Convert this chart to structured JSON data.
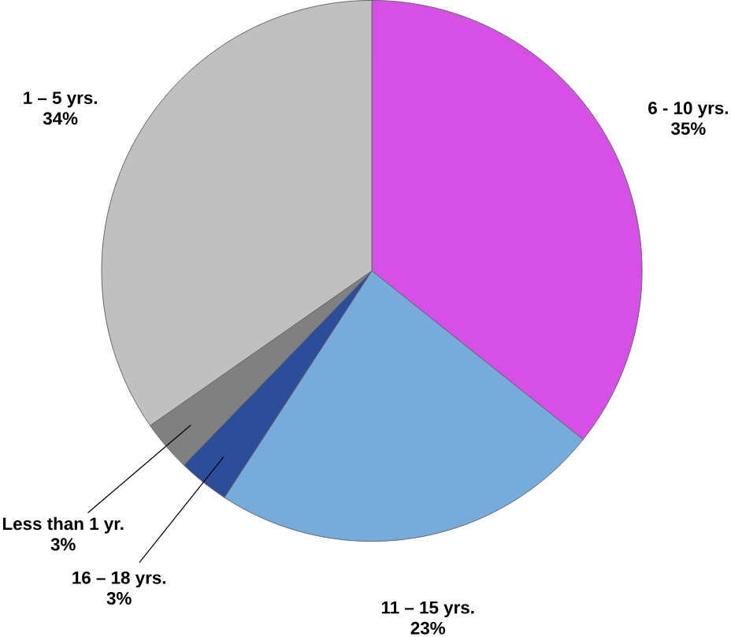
{
  "chart_data": {
    "type": "pie",
    "categories": [
      "6 - 10 yrs.",
      "11 – 15 yrs.",
      "16 – 18 yrs.",
      "Less than 1 yr.",
      "1 – 5 yrs."
    ],
    "values": [
      35,
      23,
      3,
      3,
      34
    ],
    "value_labels": [
      "35%",
      "23%",
      "3%",
      "3%",
      "34%"
    ],
    "colors": [
      "#d64fe6",
      "#76acdc",
      "#2b4d9a",
      "#808080",
      "#c0c0c0"
    ]
  }
}
